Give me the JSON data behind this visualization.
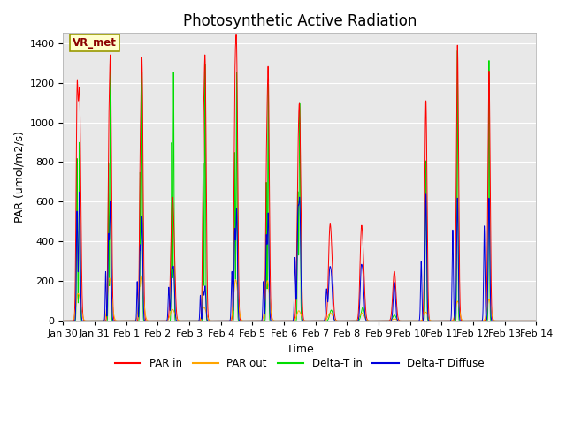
{
  "title": "Photosynthetic Active Radiation",
  "ylabel": "PAR (umol/m2/s)",
  "xlabel": "Time",
  "annotation_text": "VR_met",
  "legend_labels": [
    "PAR in",
    "PAR out",
    "Delta-T in",
    "Delta-T Diffuse"
  ],
  "legend_colors": [
    "#ff0000",
    "#ffa500",
    "#00dd00",
    "#0000dd"
  ],
  "background_color": "#ffffff",
  "plot_bg_color": "#e8e8e8",
  "ylim": [
    0,
    1450
  ],
  "yticks": [
    0,
    200,
    400,
    600,
    800,
    1000,
    1200,
    1400
  ],
  "tick_dates": [
    "Jan 30",
    "Jan 31",
    "Feb 1",
    "Feb 2",
    "Feb 3",
    "Feb 4",
    "Feb 5",
    "Feb 6",
    "Feb 7",
    "Feb 8",
    "Feb 9",
    "Feb 10",
    "Feb 11",
    "Feb 12",
    "Feb 13",
    "Feb 14"
  ],
  "n_days": 15,
  "points_per_day": 288,
  "title_fontsize": 12,
  "axis_fontsize": 9,
  "tick_fontsize": 8
}
